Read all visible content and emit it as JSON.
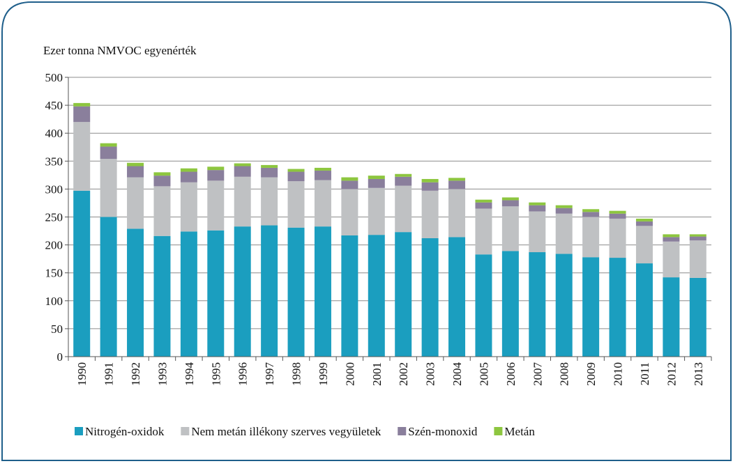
{
  "chart_data": {
    "type": "stacked_bar",
    "ylabel": "Ezer tonna NMVOC egyenérték",
    "categories": [
      "1990",
      "1991",
      "1992",
      "1993",
      "1994",
      "1995",
      "1996",
      "1997",
      "1998",
      "1999",
      "2000",
      "2001",
      "2002",
      "2003",
      "2004",
      "2005",
      "2006",
      "2007",
      "2008",
      "2009",
      "2010",
      "2011",
      "2012",
      "2013"
    ],
    "series": [
      {
        "name": "Nitrogén-oxidok",
        "color": "#1b9ebf",
        "values": [
          297,
          250,
          229,
          216,
          224,
          226,
          233,
          235,
          231,
          233,
          217,
          218,
          223,
          212,
          214,
          183,
          189,
          187,
          184,
          178,
          177,
          167,
          142,
          141
        ]
      },
      {
        "name": "Nem metán illékony szerves vegyületek",
        "color": "#bfc1c3",
        "values": [
          123,
          104,
          92,
          89,
          88,
          89,
          89,
          86,
          83,
          83,
          83,
          84,
          83,
          85,
          86,
          82,
          80,
          73,
          72,
          72,
          70,
          67,
          64,
          67
        ]
      },
      {
        "name": "Szén-monoxid",
        "color": "#8a7f9c",
        "values": [
          28,
          22,
          20,
          19,
          19,
          19,
          19,
          17,
          17,
          17,
          15,
          16,
          16,
          15,
          15,
          11,
          11,
          11,
          10,
          9,
          9,
          8,
          8,
          7
        ]
      },
      {
        "name": "Metán",
        "color": "#8dc63f",
        "values": [
          6,
          6,
          6,
          6,
          6,
          6,
          5,
          5,
          5,
          5,
          6,
          6,
          5,
          6,
          5,
          5,
          5,
          5,
          5,
          5,
          5,
          5,
          5,
          4
        ]
      }
    ],
    "ylim": [
      0,
      500
    ],
    "yticks": [
      0,
      50,
      100,
      150,
      200,
      250,
      300,
      350,
      400,
      450,
      500
    ],
    "grid": true,
    "legend": "bottom"
  }
}
